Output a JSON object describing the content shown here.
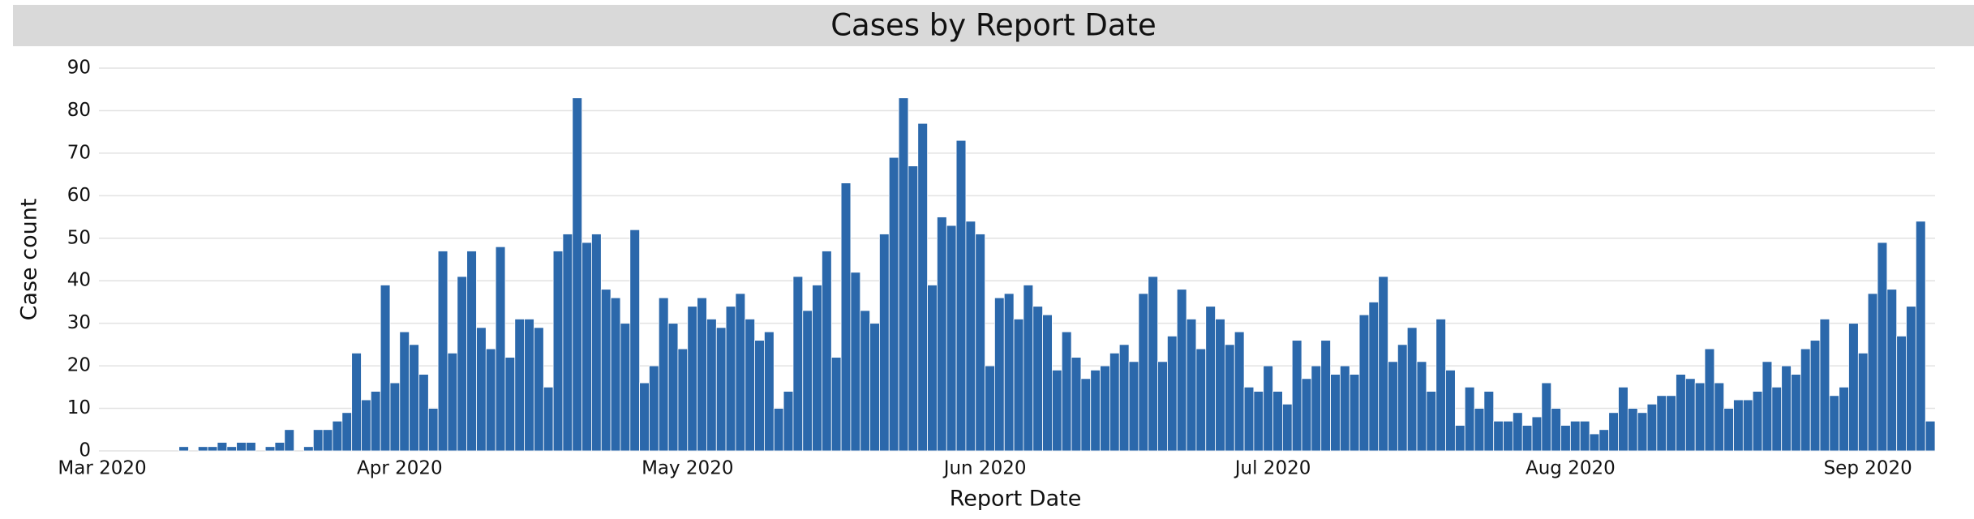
{
  "chart_data": {
    "type": "bar",
    "title": "Cases by Report Date",
    "x_label": "Report Date",
    "y_label": "Case count",
    "color": "#2b68ab",
    "grid": true,
    "ylim": [
      0,
      90
    ],
    "yticks": [
      0,
      10,
      20,
      30,
      40,
      50,
      60,
      70,
      80,
      90
    ],
    "categories": [
      "Mar 2020",
      null,
      null,
      null,
      null,
      null,
      null,
      null,
      null,
      null,
      null,
      null,
      null,
      null,
      null,
      null,
      null,
      null,
      null,
      null,
      null,
      null,
      null,
      null,
      null,
      null,
      null,
      null,
      null,
      null,
      null,
      "Apr 2020",
      null,
      null,
      null,
      null,
      null,
      null,
      null,
      null,
      null,
      null,
      null,
      null,
      null,
      null,
      null,
      null,
      null,
      null,
      null,
      null,
      null,
      null,
      null,
      null,
      null,
      null,
      null,
      null,
      null,
      "May 2020",
      null,
      null,
      null,
      null,
      null,
      null,
      null,
      null,
      null,
      null,
      null,
      null,
      null,
      null,
      null,
      null,
      null,
      null,
      null,
      null,
      null,
      null,
      null,
      null,
      null,
      null,
      null,
      null,
      null,
      null,
      "Jun 2020",
      null,
      null,
      null,
      null,
      null,
      null,
      null,
      null,
      null,
      null,
      null,
      null,
      null,
      null,
      null,
      null,
      null,
      null,
      null,
      null,
      null,
      null,
      null,
      null,
      null,
      null,
      null,
      null,
      null,
      "Jul 2020",
      null,
      null,
      null,
      null,
      null,
      null,
      null,
      null,
      null,
      null,
      null,
      null,
      null,
      null,
      null,
      null,
      null,
      null,
      null,
      null,
      null,
      null,
      null,
      null,
      null,
      null,
      null,
      null,
      null,
      null,
      "Aug 2020",
      null,
      null,
      null,
      null,
      null,
      null,
      null,
      null,
      null,
      null,
      null,
      null,
      null,
      null,
      null,
      null,
      null,
      null,
      null,
      null,
      null,
      null,
      null,
      null,
      null,
      null,
      null,
      null,
      null,
      null,
      "Sep 2020",
      null,
      null,
      null,
      null,
      null,
      null
    ],
    "values": [
      0,
      0,
      0,
      0,
      0,
      0,
      0,
      0,
      1,
      0,
      1,
      1,
      2,
      1,
      2,
      2,
      0,
      1,
      2,
      5,
      0,
      1,
      5,
      5,
      7,
      9,
      23,
      12,
      14,
      39,
      16,
      28,
      25,
      18,
      10,
      47,
      23,
      41,
      47,
      29,
      24,
      48,
      22,
      31,
      31,
      29,
      15,
      47,
      51,
      83,
      49,
      51,
      38,
      36,
      30,
      52,
      16,
      20,
      36,
      30,
      24,
      34,
      36,
      31,
      29,
      34,
      37,
      31,
      26,
      28,
      10,
      14,
      41,
      33,
      39,
      47,
      22,
      63,
      42,
      33,
      30,
      51,
      69,
      83,
      67,
      77,
      39,
      55,
      53,
      73,
      54,
      51,
      20,
      36,
      37,
      31,
      39,
      34,
      32,
      19,
      28,
      22,
      17,
      19,
      20,
      23,
      25,
      21,
      37,
      41,
      21,
      27,
      38,
      31,
      24,
      34,
      31,
      25,
      28,
      15,
      14,
      20,
      14,
      11,
      26,
      17,
      20,
      26,
      18,
      20,
      18,
      32,
      35,
      41,
      21,
      25,
      29,
      21,
      14,
      31,
      19,
      6,
      15,
      10,
      14,
      7,
      7,
      9,
      6,
      8,
      16,
      10,
      6,
      7,
      7,
      4,
      5,
      9,
      15,
      10,
      9,
      11,
      13,
      13,
      18,
      17,
      16,
      24,
      16,
      10,
      12,
      12,
      14,
      21,
      15,
      20,
      18,
      24,
      26,
      31,
      13,
      15,
      30,
      23,
      37,
      49,
      38,
      27,
      34,
      54,
      7
    ]
  }
}
